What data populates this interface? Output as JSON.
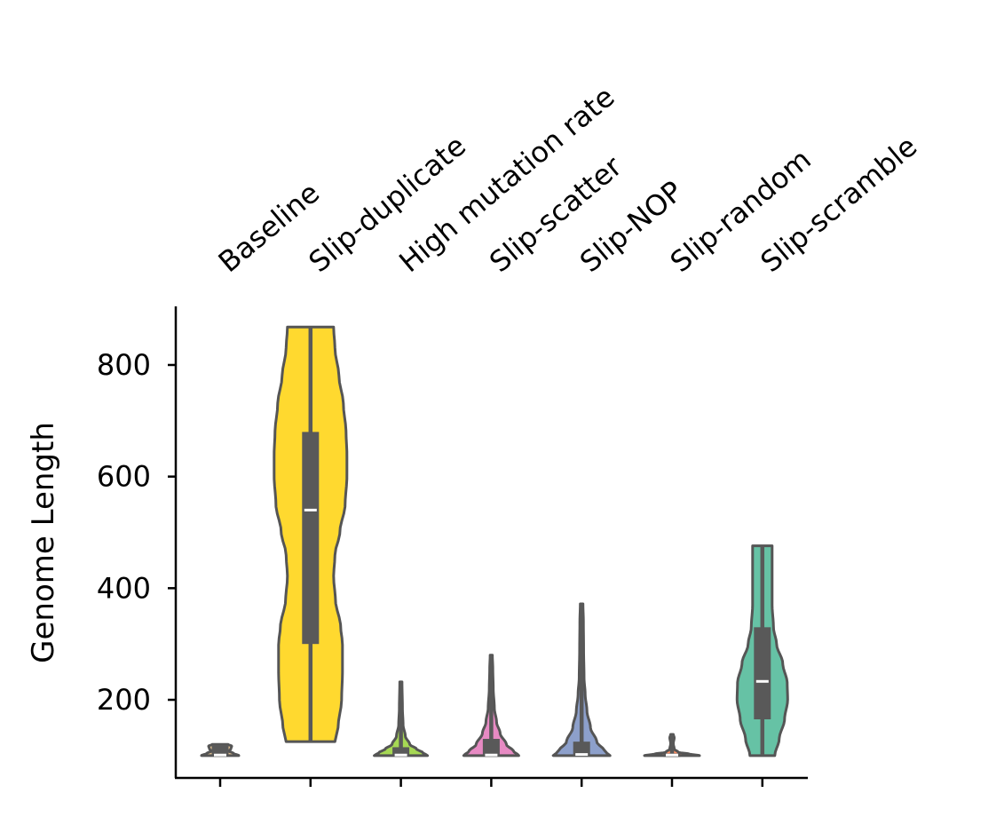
{
  "chart_data": {
    "type": "violin",
    "title": "",
    "xlabel": "",
    "ylabel": "Genome Length",
    "ylim": [
      60,
      905
    ],
    "yticks": [
      200,
      400,
      600,
      800
    ],
    "grid": false,
    "legend": "none",
    "categories": [
      "Baseline",
      "Slip-duplicate",
      "High mutation rate",
      "Slip-scatter",
      "Slip-NOP",
      "Slip-random",
      "Slip-scramble"
    ],
    "series": [
      {
        "category": "Baseline",
        "color": "#e5c494",
        "min": 100,
        "q1": 100,
        "median": 101,
        "q3": 120,
        "max": 120,
        "profile": [
          [
            100,
            0.42
          ],
          [
            104,
            0.3
          ],
          [
            108,
            0.2
          ],
          [
            112,
            0.24
          ],
          [
            117,
            0.26
          ],
          [
            120,
            0.18
          ]
        ]
      },
      {
        "category": "Slip-duplicate",
        "color": "#ffd92f",
        "min": 125,
        "q1": 300,
        "median": 540,
        "q3": 680,
        "max": 868,
        "profile": [
          [
            125,
            0.55
          ],
          [
            150,
            0.62
          ],
          [
            200,
            0.7
          ],
          [
            250,
            0.72
          ],
          [
            300,
            0.72
          ],
          [
            330,
            0.68
          ],
          [
            380,
            0.56
          ],
          [
            420,
            0.52
          ],
          [
            460,
            0.55
          ],
          [
            500,
            0.66
          ],
          [
            550,
            0.78
          ],
          [
            600,
            0.82
          ],
          [
            640,
            0.82
          ],
          [
            680,
            0.8
          ],
          [
            730,
            0.74
          ],
          [
            780,
            0.64
          ],
          [
            830,
            0.55
          ],
          [
            868,
            0.52
          ]
        ]
      },
      {
        "category": "High mutation rate",
        "color": "#a6d854",
        "min": 100,
        "q1": 100,
        "median": 101,
        "q3": 115,
        "max": 232,
        "profile": [
          [
            100,
            0.6
          ],
          [
            105,
            0.5
          ],
          [
            112,
            0.35
          ],
          [
            120,
            0.2
          ],
          [
            135,
            0.1
          ],
          [
            155,
            0.05
          ],
          [
            185,
            0.035
          ],
          [
            232,
            0.025
          ]
        ]
      },
      {
        "category": "Slip-scatter",
        "color": "#e78ac3",
        "min": 100,
        "q1": 100,
        "median": 101,
        "q3": 130,
        "max": 280,
        "profile": [
          [
            100,
            0.62
          ],
          [
            108,
            0.5
          ],
          [
            120,
            0.34
          ],
          [
            140,
            0.2
          ],
          [
            160,
            0.12
          ],
          [
            185,
            0.07
          ],
          [
            220,
            0.045
          ],
          [
            255,
            0.035
          ],
          [
            280,
            0.025
          ]
        ]
      },
      {
        "category": "Slip-NOP",
        "color": "#8da0cb",
        "min": 100,
        "q1": 100,
        "median": 102,
        "q3": 125,
        "max": 372,
        "profile": [
          [
            100,
            0.64
          ],
          [
            108,
            0.52
          ],
          [
            125,
            0.34
          ],
          [
            150,
            0.2
          ],
          [
            180,
            0.12
          ],
          [
            210,
            0.08
          ],
          [
            240,
            0.055
          ],
          [
            290,
            0.045
          ],
          [
            340,
            0.04
          ],
          [
            372,
            0.03
          ]
        ]
      },
      {
        "category": "Slip-random",
        "color": "#fc8d62",
        "min": 100,
        "q1": 100,
        "median": 101,
        "q3": 104,
        "max": 138,
        "profile": [
          [
            100,
            0.62
          ],
          [
            103,
            0.38
          ],
          [
            106,
            0.14
          ],
          [
            112,
            0.05
          ],
          [
            122,
            0.03
          ],
          [
            132,
            0.05
          ],
          [
            138,
            0.03
          ]
        ]
      },
      {
        "category": "Slip-scramble",
        "color": "#66c2a5",
        "min": 100,
        "q1": 165,
        "median": 233,
        "q3": 330,
        "max": 476,
        "profile": [
          [
            100,
            0.28
          ],
          [
            130,
            0.38
          ],
          [
            165,
            0.5
          ],
          [
            200,
            0.57
          ],
          [
            230,
            0.56
          ],
          [
            265,
            0.46
          ],
          [
            300,
            0.32
          ],
          [
            330,
            0.25
          ],
          [
            370,
            0.22
          ],
          [
            420,
            0.22
          ],
          [
            476,
            0.22
          ]
        ]
      }
    ]
  }
}
